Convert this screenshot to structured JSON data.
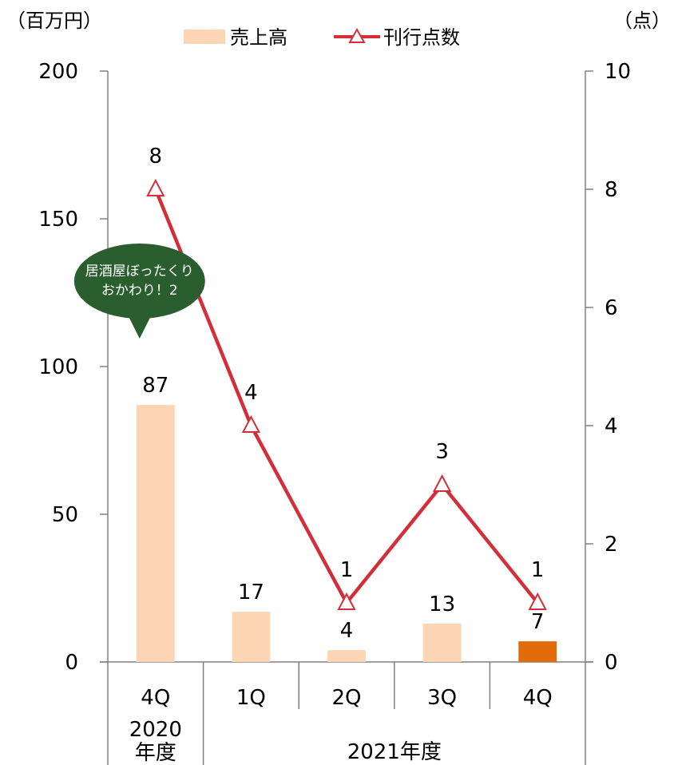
{
  "chart_data": {
    "type": "bar+line",
    "left_axis": {
      "unit_label": "（百万円）",
      "min": 0,
      "max": 200,
      "ticks": [
        0,
        50,
        100,
        150,
        200
      ]
    },
    "right_axis": {
      "unit_label": "（点）",
      "min": 0,
      "max": 10,
      "ticks": [
        0,
        2,
        4,
        6,
        8,
        10
      ]
    },
    "categories": [
      "4Q",
      "1Q",
      "2Q",
      "3Q",
      "4Q"
    ],
    "category_groups": [
      {
        "label": "2020\n年度",
        "span": [
          0,
          1
        ]
      },
      {
        "label": "2021年度",
        "span": [
          1,
          5
        ]
      }
    ],
    "series": [
      {
        "name": "売上高",
        "type": "bar",
        "axis": "left",
        "values": [
          87,
          17,
          4,
          13,
          7
        ],
        "color": "#FCD5B4",
        "highlight_index": 4,
        "highlight_color": "#E26B0A"
      },
      {
        "name": "刊行点数",
        "type": "line",
        "axis": "right",
        "values": [
          8,
          4,
          1,
          3,
          1
        ],
        "color": "#D32F3A",
        "marker": "triangle-open"
      }
    ],
    "annotation": {
      "text_lines": [
        "居酒屋ぼったくり",
        "おかわり！2"
      ],
      "target_index": 0,
      "color": "#2A5E2E"
    },
    "legend_position": "top-center",
    "grid": false
  }
}
